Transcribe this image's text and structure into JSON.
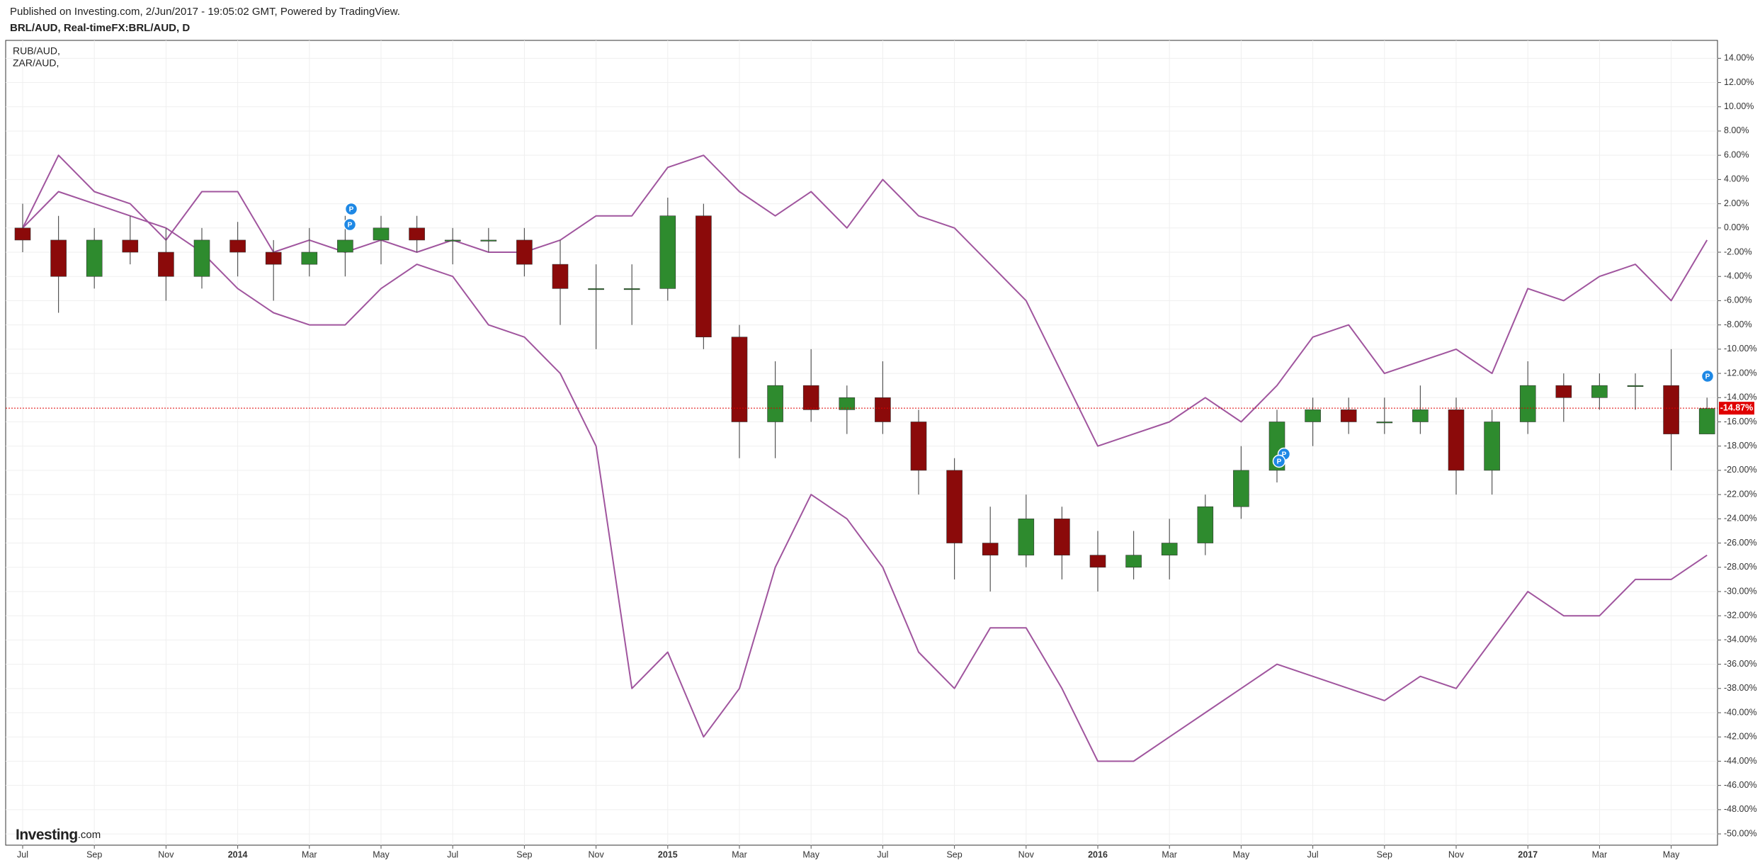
{
  "header": "Published on Investing.com, 2/Jun/2017 - 19:05:02 GMT, Powered by TradingView.",
  "watermark": {
    "name": "Investing",
    "suffix": ".com"
  },
  "chart_data": {
    "type": "candlestick",
    "title": "BRL/AUD, Real-timeFX:BRL/AUD, D",
    "categories": [
      "Jul",
      null,
      "Sep",
      null,
      "Nov",
      null,
      "2014",
      null,
      "Mar",
      null,
      "May",
      null,
      "Jul",
      null,
      "Sep",
      null,
      "Nov",
      null,
      "2015",
      null,
      "Mar",
      null,
      "May",
      null,
      "Jul",
      null,
      "Sep",
      null,
      "Nov",
      null,
      "2016",
      null,
      "Mar",
      null,
      "May",
      null,
      "Jul",
      null,
      "Sep",
      null,
      "Nov",
      null,
      "2017",
      null,
      "Mar",
      null,
      "May",
      null
    ],
    "candles": {
      "name": "BRL/AUD",
      "up_color": "#2e8b2e",
      "down_color": "#8b0a0a",
      "open": [
        0,
        -1,
        -4,
        -1,
        -2,
        -4,
        -1,
        -2,
        -3,
        -2,
        -1,
        0,
        -1,
        -1,
        -1,
        -3,
        -5,
        -5,
        -5,
        1,
        -9,
        -16,
        -13,
        -15,
        -14,
        -16,
        -20,
        -26,
        -27,
        -24,
        -27,
        -28,
        -27,
        -26,
        -23,
        -20,
        -16,
        -15,
        -16,
        -16,
        -15,
        -20,
        -16,
        -13,
        -14,
        -13,
        -13,
        -17
      ],
      "high": [
        2,
        1,
        0,
        1,
        0,
        0,
        0.5,
        -1,
        0,
        1,
        1,
        1,
        0,
        0,
        0,
        -1,
        -3,
        -3,
        2.5,
        2,
        -8,
        -11,
        -10,
        -13,
        -11,
        -15,
        -19,
        -23,
        -22,
        -23,
        -25,
        -25,
        -24,
        -22,
        -18,
        -15,
        -14,
        -14,
        -14,
        -13,
        -14,
        -15,
        -11,
        -12,
        -12,
        -12,
        -10,
        -14
      ],
      "low": [
        -2,
        -7,
        -5,
        -3,
        -6,
        -5,
        -4,
        -6,
        -4,
        -4,
        -3,
        -2,
        -3,
        -2,
        -4,
        -8,
        -10,
        -8,
        -6,
        -10,
        -19,
        -19,
        -16,
        -17,
        -17,
        -22,
        -29,
        -30,
        -28,
        -29,
        -30,
        -29,
        -29,
        -27,
        -24,
        -21,
        -18,
        -17,
        -17,
        -17,
        -22,
        -22,
        -17,
        -16,
        -15,
        -15,
        -20,
        -17
      ],
      "close": [
        -1,
        -4,
        -1,
        -2,
        -4,
        -1,
        -2,
        -3,
        -2,
        -1,
        0,
        -1,
        -1,
        -1,
        -3,
        -5,
        -5,
        -5,
        1,
        -9,
        -16,
        -13,
        -15,
        -14,
        -16,
        -20,
        -26,
        -27,
        -24,
        -27,
        -28,
        -27,
        -26,
        -23,
        -20,
        -16,
        -15,
        -16,
        -16,
        -15,
        -20,
        -16,
        -13,
        -14,
        -13,
        -13,
        -17,
        -14.9
      ],
      "last": {
        "value": -14.87,
        "label": "-14.87%",
        "color": "#e00000"
      }
    },
    "series": [
      {
        "name": "RUB/AUD,",
        "color": "#a0559e",
        "values": [
          0,
          3,
          2,
          1,
          0,
          -2,
          -5,
          -7,
          -8,
          -8,
          -5,
          -3,
          -4,
          -8,
          -9,
          -12,
          -18,
          -38,
          -35,
          -42,
          -38,
          -28,
          -22,
          -24,
          -28,
          -35,
          -38,
          -33,
          -33,
          -38,
          -44,
          -44,
          -42,
          -40,
          -38,
          -36,
          -37,
          -38,
          -39,
          -37,
          -38,
          -34,
          -30,
          -32,
          -32,
          -29,
          -29,
          -27
        ]
      },
      {
        "name": "ZAR/AUD,",
        "color": "#a0559e",
        "values": [
          0,
          6,
          3,
          2,
          -1,
          3,
          3,
          -2,
          -1,
          -2,
          -1,
          -2,
          -1,
          -2,
          -2,
          -1,
          1,
          1,
          5,
          6,
          3,
          1,
          3,
          0,
          4,
          1,
          0,
          -3,
          -6,
          -12,
          -18,
          -17,
          -16,
          -14,
          -16,
          -13,
          -9,
          -8,
          -12,
          -11,
          -10,
          -12,
          -5,
          -6,
          -4,
          -3,
          -6,
          -1
        ]
      }
    ],
    "event_marker": "P",
    "ylim": [
      -50.93,
      15.48
    ],
    "yticks": [
      {
        "value": 14,
        "label": "14.00%"
      },
      {
        "value": 12,
        "label": "12.00%"
      },
      {
        "value": 10,
        "label": "10.00%"
      },
      {
        "value": 8,
        "label": "8.00%"
      },
      {
        "value": 6,
        "label": "6.00%"
      },
      {
        "value": 4,
        "label": "4.00%"
      },
      {
        "value": 2,
        "label": "2.00%"
      },
      {
        "value": 0,
        "label": "0.00%"
      },
      {
        "value": -2,
        "label": "-2.00%"
      },
      {
        "value": -4,
        "label": "-4.00%"
      },
      {
        "value": -6,
        "label": "-6.00%"
      },
      {
        "value": -8,
        "label": "-8.00%"
      },
      {
        "value": -10,
        "label": "-10.00%"
      },
      {
        "value": -12,
        "label": "-12.00%"
      },
      {
        "value": -14,
        "label": "-14.00%"
      },
      {
        "value": -16,
        "label": "-16.00%"
      },
      {
        "value": -18,
        "label": "-18.00%"
      },
      {
        "value": -20,
        "label": "-20.00%"
      },
      {
        "value": -22,
        "label": "-22.00%"
      },
      {
        "value": -24,
        "label": "-24.00%"
      },
      {
        "value": -26,
        "label": "-26.00%"
      },
      {
        "value": -28,
        "label": "-28.00%"
      },
      {
        "value": -30,
        "label": "-30.00%"
      },
      {
        "value": -32,
        "label": "-32.00%"
      },
      {
        "value": -34,
        "label": "-34.00%"
      },
      {
        "value": -36,
        "label": "-36.00%"
      },
      {
        "value": -38,
        "label": "-38.00%"
      },
      {
        "value": -40,
        "label": "-40.00%"
      },
      {
        "value": -42,
        "label": "-42.00%"
      },
      {
        "value": -44,
        "label": "-44.00%"
      },
      {
        "value": -46,
        "label": "-46.00%"
      },
      {
        "value": -48,
        "label": "-48.00%"
      },
      {
        "value": -50,
        "label": "-50.00%"
      }
    ],
    "grid": true
  }
}
